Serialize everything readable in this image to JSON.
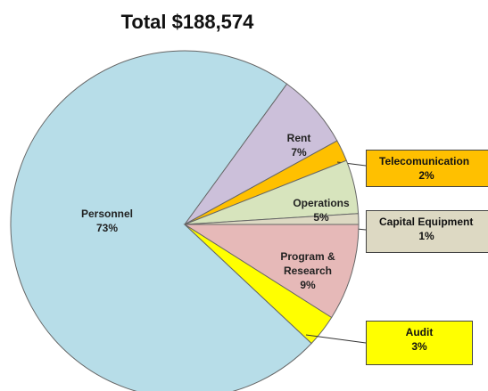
{
  "chart_data": {
    "type": "pie",
    "title": "Total $188,574",
    "categories": [
      "Personnel",
      "Rent",
      "Telecomunication",
      "Operations",
      "Capital Equipment",
      "Program & Research",
      "Audit"
    ],
    "values": [
      73,
      7,
      2,
      5,
      1,
      9,
      3
    ],
    "value_labels": [
      "73%",
      "7%",
      "2%",
      "5%",
      "1%",
      "9%",
      "3%"
    ],
    "colors": [
      "#b7dde8",
      "#ccc0da",
      "#ffc000",
      "#d7e4bd",
      "#ddd9c3",
      "#e6b9b8",
      "#ffff00"
    ]
  }
}
